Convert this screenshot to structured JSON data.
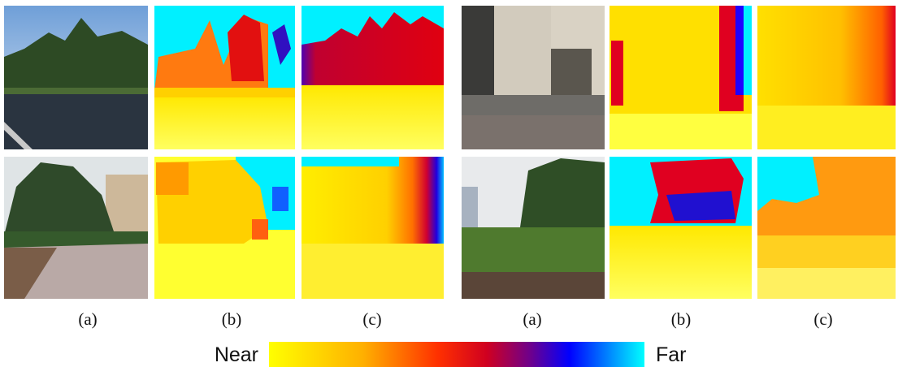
{
  "captions": [
    "(a)",
    "(b)",
    "(c)",
    "(a)",
    "(b)",
    "(c)"
  ],
  "colorbar": {
    "near_label": "Near",
    "far_label": "Far"
  }
}
